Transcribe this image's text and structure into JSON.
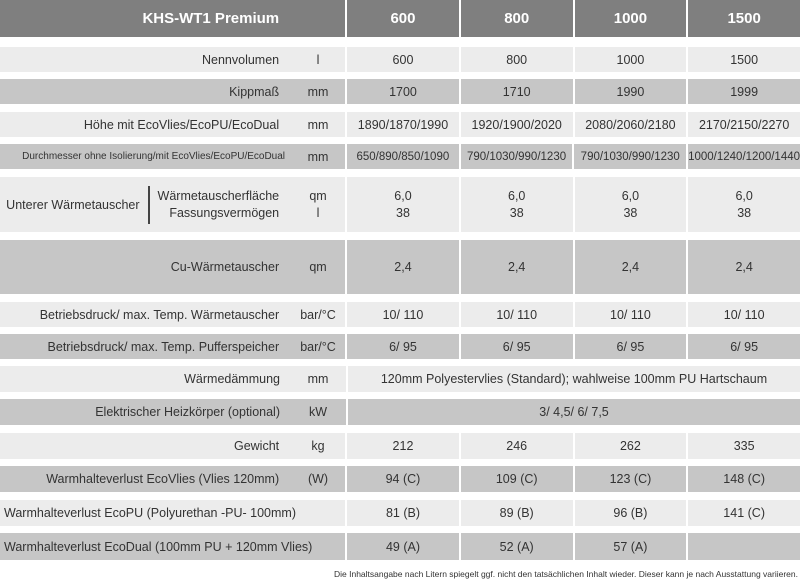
{
  "header": {
    "title": "KHS-WT1 Premium",
    "models": [
      "600",
      "800",
      "1000",
      "1500"
    ]
  },
  "rows": [
    {
      "label": "Nennvolumen",
      "unit": "l",
      "values": [
        "600",
        "800",
        "1000",
        "1500"
      ]
    },
    {
      "label": "Kippmaß",
      "unit": "mm",
      "values": [
        "1700",
        "1710",
        "1990",
        "1999"
      ]
    },
    {
      "label": "Höhe mit EcoVlies/EcoPU/EcoDual",
      "unit": "mm",
      "values": [
        "1890/1870/1990",
        "1920/1900/2020",
        "2080/2060/2180",
        "2170/2150/2270"
      ]
    },
    {
      "label": "Durchmesser ohne Isolierung/mit EcoVlies/EcoPU/EcoDual",
      "unit": "mm",
      "values": [
        "650/890/850/1090",
        "790/1030/990/1230",
        "790/1030/990/1230",
        "1000/1240/1200/1440"
      ]
    },
    {
      "label": "Cu-Wärmetauscher",
      "unit": "qm",
      "values": [
        "2,4",
        "2,4",
        "2,4",
        "2,4"
      ]
    },
    {
      "label": "Betriebsdruck/ max. Temp. Wärmetauscher",
      "unit": "bar/°C",
      "values": [
        "10/ 110",
        "10/ 110",
        "10/ 110",
        "10/ 110"
      ]
    },
    {
      "label": "Betriebsdruck/ max. Temp. Pufferspeicher",
      "unit": "bar/°C",
      "values": [
        "6/ 95",
        "6/ 95",
        "6/ 95",
        "6/ 95"
      ]
    },
    {
      "label": "Wärmedämmung",
      "unit": "mm",
      "span_value": "120mm Polyestervlies (Standard); wahlweise 100mm PU Hartschaum"
    },
    {
      "label": "Elektrischer Heizkörper (optional)",
      "unit": "kW",
      "span_value": "3/ 4,5/ 6/ 7,5"
    },
    {
      "label": "Gewicht",
      "unit": "kg",
      "values": [
        "212",
        "246",
        "262",
        "335"
      ]
    },
    {
      "label": "Warmhalteverlust EcoVlies (Vlies 120mm)",
      "unit": "(W)",
      "values": [
        "94 (C)",
        "109 (C)",
        "123 (C)",
        "148 (C)"
      ]
    },
    {
      "label": "Warmhalteverlust EcoPU (Polyurethan -PU- 100mm)",
      "values": [
        "81 (B)",
        "89 (B)",
        "96 (B)",
        "141 (C)"
      ]
    },
    {
      "label": "Warmhalteverlust EcoDual (100mm PU + 120mm Vlies)",
      "values": [
        "49 (A)",
        "52 (A)",
        "57 (A)",
        ""
      ]
    }
  ],
  "heat_exchanger": {
    "group": "Unterer Wärmetauscher",
    "sub_labels": [
      "Wärmetauscherfläche",
      "Fassungsvermögen"
    ],
    "units": [
      "qm",
      "l"
    ],
    "values": [
      [
        "6,0",
        "38"
      ],
      [
        "6,0",
        "38"
      ],
      [
        "6,0",
        "38"
      ],
      [
        "6,0",
        "38"
      ]
    ]
  },
  "footnote": "Die Inhaltsangabe nach Litern spiegelt ggf. nicht den tatsächlichen Inhalt wieder. Dieser kann je nach Ausstattung variieren.",
  "colors": {
    "header": "#7f7f7f",
    "row_dark": "#c6c6c6",
    "row_light": "#ececec"
  }
}
